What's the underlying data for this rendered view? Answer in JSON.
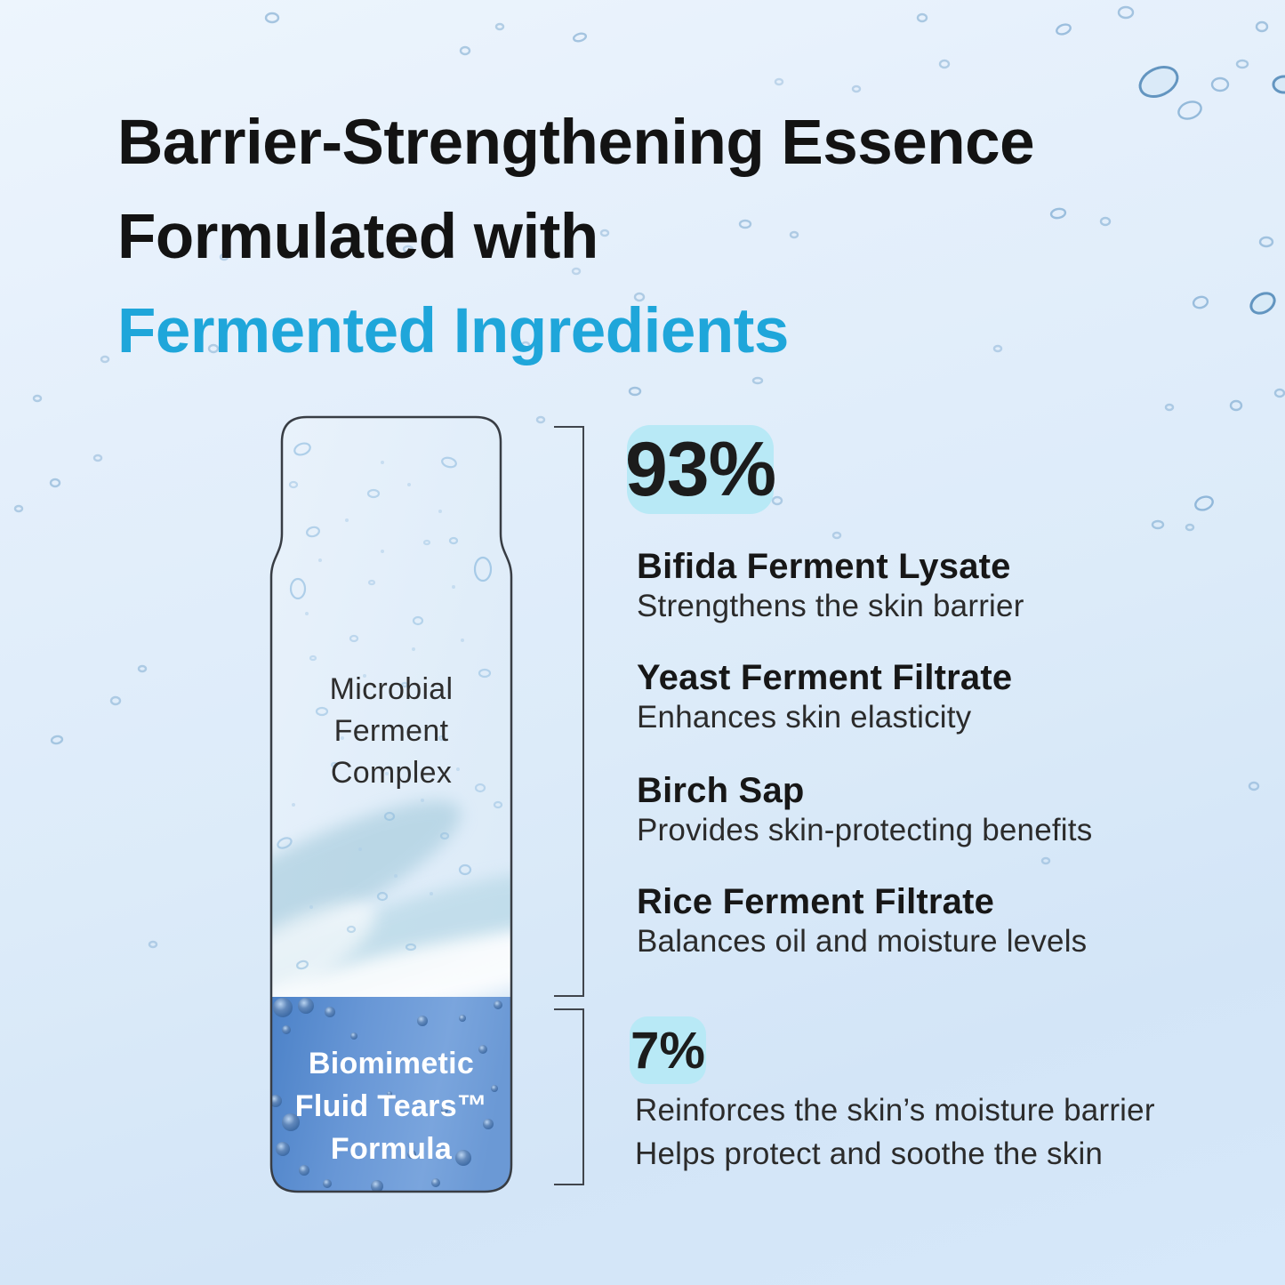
{
  "title": {
    "line1": "Barrier-Strengthening Essence",
    "line2": "Formulated with",
    "line3": "Fermented Ingredients"
  },
  "colors": {
    "accent_blue": "#1FA6DA",
    "badge_background": "#B8E9F6",
    "formula_section_blue": "#6496D5",
    "background_light_blue": "#DCEBF9",
    "text_dark": "#171717"
  },
  "bottle": {
    "top_label": "Microbial Ferment Complex",
    "bottom_label": "Biomimetic Fluid Tears™ Formula"
  },
  "composition": {
    "primary": {
      "percent": "93%",
      "ingredients": [
        {
          "name": "Bifida Ferment Lysate",
          "benefit": "Strengthens the skin barrier"
        },
        {
          "name": "Yeast Ferment Filtrate",
          "benefit": "Enhances skin elasticity"
        },
        {
          "name": "Birch Sap",
          "benefit": "Provides skin-protecting benefits"
        },
        {
          "name": "Rice Ferment Filtrate",
          "benefit": "Balances oil and moisture levels"
        }
      ]
    },
    "secondary": {
      "percent": "7%",
      "benefits": [
        "Reinforces the skin’s moisture barrier",
        "Helps protect and soothe the skin"
      ]
    }
  }
}
